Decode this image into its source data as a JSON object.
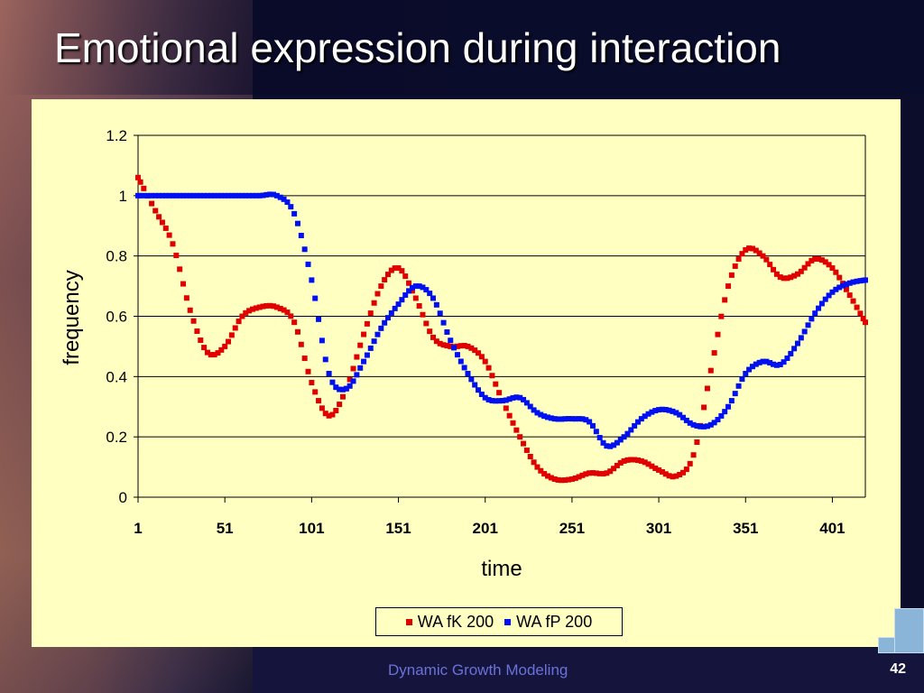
{
  "slide": {
    "title": "Emotional expression during interaction",
    "footer": "Dynamic Growth Modeling",
    "page_number": "42"
  },
  "chart_data": {
    "type": "line",
    "xlabel": "time",
    "ylabel": "frequency",
    "xlim": [
      1,
      420
    ],
    "ylim": [
      0,
      1.2
    ],
    "x_ticks": [
      "1",
      "51",
      "101",
      "151",
      "201",
      "251",
      "301",
      "351",
      "401"
    ],
    "y_ticks": [
      "0",
      "0.2",
      "0.4",
      "0.6",
      "0.8",
      "1",
      "1.2"
    ],
    "grid": "horizontal",
    "legend_position": "bottom",
    "x": [
      1,
      11,
      21,
      31,
      41,
      51,
      61,
      71,
      81,
      91,
      101,
      111,
      121,
      131,
      141,
      151,
      161,
      171,
      181,
      191,
      201,
      211,
      221,
      231,
      241,
      251,
      261,
      271,
      281,
      291,
      301,
      311,
      321,
      331,
      341,
      351,
      361,
      371,
      381,
      391,
      401,
      411,
      420
    ],
    "series": [
      {
        "name": "WA fK 200",
        "color": "#e00000",
        "values": [
          1.06,
          0.95,
          0.84,
          0.62,
          0.48,
          0.5,
          0.6,
          0.63,
          0.63,
          0.58,
          0.38,
          0.27,
          0.36,
          0.54,
          0.7,
          0.76,
          0.66,
          0.53,
          0.5,
          0.5,
          0.45,
          0.32,
          0.2,
          0.1,
          0.06,
          0.06,
          0.08,
          0.08,
          0.12,
          0.12,
          0.09,
          0.07,
          0.14,
          0.42,
          0.7,
          0.82,
          0.8,
          0.73,
          0.74,
          0.79,
          0.76,
          0.67,
          0.58
        ]
      },
      {
        "name": "WA fP 200",
        "color": "#0010f0",
        "values": [
          1.0,
          1.0,
          1.0,
          1.0,
          1.0,
          1.0,
          1.0,
          1.0,
          1.0,
          0.94,
          0.72,
          0.41,
          0.36,
          0.45,
          0.56,
          0.64,
          0.7,
          0.66,
          0.52,
          0.41,
          0.33,
          0.32,
          0.33,
          0.28,
          0.26,
          0.26,
          0.25,
          0.17,
          0.2,
          0.26,
          0.29,
          0.28,
          0.24,
          0.24,
          0.3,
          0.41,
          0.45,
          0.44,
          0.51,
          0.61,
          0.68,
          0.71,
          0.72
        ]
      }
    ]
  }
}
